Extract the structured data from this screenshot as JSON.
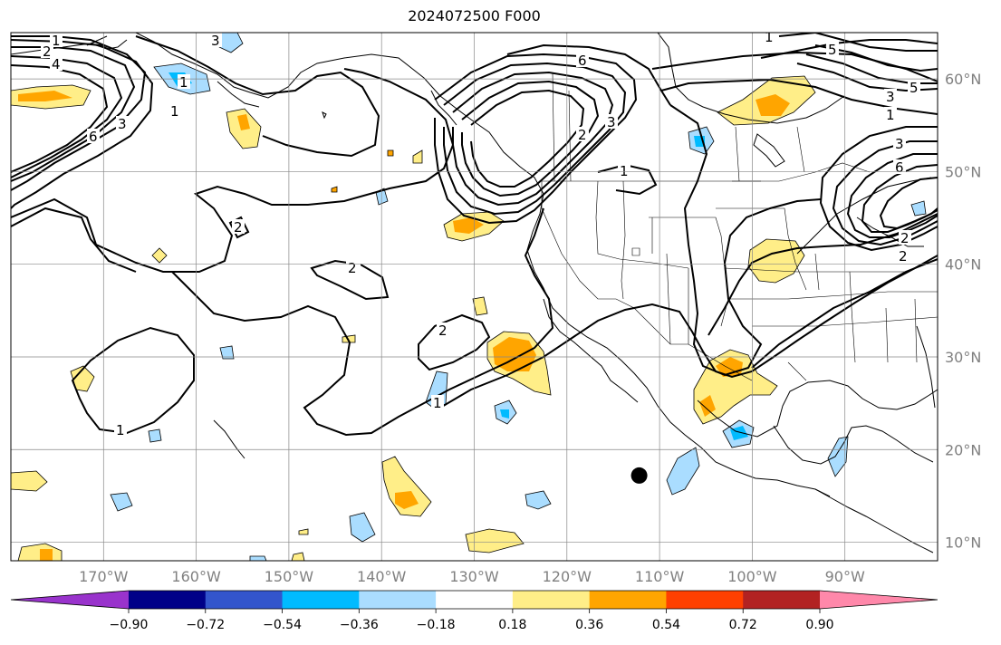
{
  "title": "2024072500 F000",
  "map": {
    "lon_range": [
      -180,
      -80
    ],
    "lat_range": [
      8,
      65
    ],
    "lat_labels": [
      "10°N",
      "20°N",
      "30°N",
      "40°N",
      "50°N",
      "60°N"
    ],
    "lat_values": [
      10,
      20,
      30,
      40,
      50,
      60
    ],
    "lon_labels": [
      "170°W",
      "160°W",
      "150°W",
      "140°W",
      "130°W",
      "120°W",
      "110°W",
      "100°W",
      "90°W"
    ],
    "lon_values": [
      -170,
      -160,
      -150,
      -140,
      -130,
      -120,
      -110,
      -100,
      -90
    ],
    "grid": true,
    "contour_labels": [
      "1",
      "2",
      "3",
      "4",
      "5",
      "6"
    ]
  },
  "colorbar": {
    "orientation": "horizontal",
    "extend": "both",
    "levels": [
      -0.9,
      -0.72,
      -0.54,
      -0.36,
      -0.18,
      0.18,
      0.36,
      0.54,
      0.72,
      0.9
    ],
    "tick_labels": [
      "−0.90",
      "−0.72",
      "−0.54",
      "−0.36",
      "−0.18",
      "0.18",
      "0.36",
      "0.54",
      "0.72",
      "0.90"
    ],
    "colors": [
      "#9933cc",
      "#000088",
      "#3355cc",
      "#00bbff",
      "#aaddff",
      "#ffffff",
      "#ffee88",
      "#ffa500",
      "#ff4000",
      "#b22222",
      "#ff88aa"
    ]
  },
  "marker": {
    "lon": -112.2,
    "lat": 17.2,
    "color": "#000000"
  }
}
